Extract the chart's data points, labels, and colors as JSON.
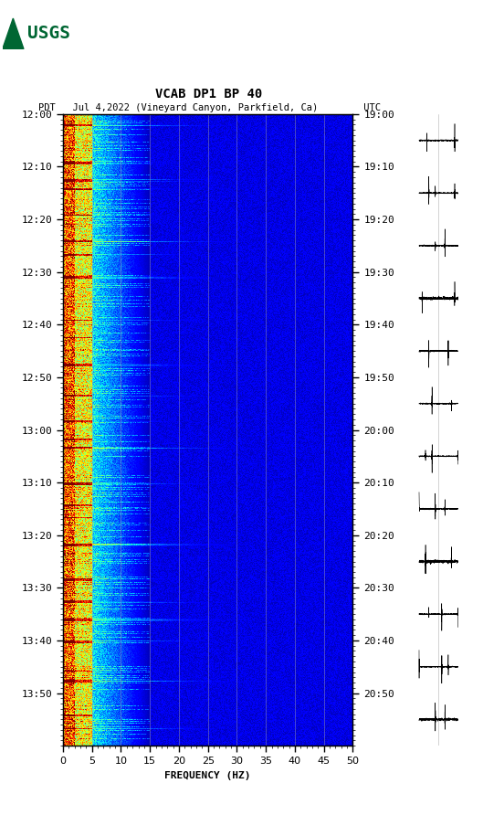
{
  "title_line1": "VCAB DP1 BP 40",
  "title_line2": "PDT   Jul 4,2022 (Vineyard Canyon, Parkfield, Ca)        UTC",
  "xlabel": "FREQUENCY (HZ)",
  "freq_min": 0,
  "freq_max": 50,
  "time_ticks_pdt": [
    "12:00",
    "12:10",
    "12:20",
    "12:30",
    "12:40",
    "12:50",
    "13:00",
    "13:10",
    "13:20",
    "13:30",
    "13:40",
    "13:50"
  ],
  "time_ticks_utc": [
    "19:00",
    "19:10",
    "19:20",
    "19:30",
    "19:40",
    "19:50",
    "20:00",
    "20:10",
    "20:20",
    "20:30",
    "20:40",
    "20:50"
  ],
  "background_color": "#ffffff",
  "fig_width": 5.52,
  "fig_height": 8.92,
  "n_time": 720,
  "n_freq": 500,
  "colormap": "jet",
  "vmin": 0.0,
  "vmax": 1.0,
  "usgs_color": "#006633",
  "vertical_line_freqs": [
    5,
    10,
    15,
    20,
    25,
    30,
    35,
    40,
    45
  ],
  "event_rows": [
    12,
    55,
    75,
    85,
    115,
    145,
    160,
    185,
    235,
    255,
    285,
    320,
    350,
    370,
    380,
    420,
    445,
    460,
    490,
    530,
    555,
    575,
    600,
    635,
    645,
    685,
    700
  ],
  "n_time_total": 720,
  "n_freq_total": 500
}
